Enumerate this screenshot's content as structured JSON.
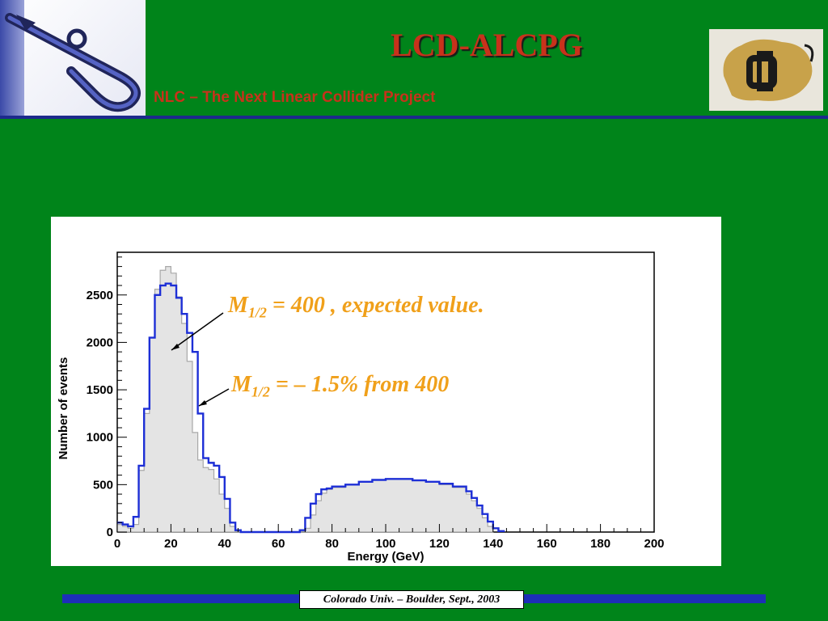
{
  "header": {
    "title": "LCD-ALCPG",
    "subtitle": "NLC – The Next Linear Collider Project"
  },
  "annotations": {
    "expected_main": "M",
    "expected_sub": "1/2",
    "expected_rest": " = 400 , expected value.",
    "shifted_main": "M",
    "shifted_sub": "1/2",
    "shifted_rest": " =  – 1.5% from 400"
  },
  "footer": {
    "text": "Colorado Univ. – Boulder, Sept., 2003"
  },
  "colors": {
    "background": "#00841a",
    "title": "#c8321b",
    "annotation": "#f0a01a",
    "accent_blue": "#1d2fb8",
    "rule": "#1d2a8c"
  },
  "icons": {
    "left_logo": "nlc-accelerator-logo",
    "right_logo": "cu-buffalo-logo"
  },
  "chart_data": {
    "type": "area",
    "xlabel": "Energy (GeV)",
    "ylabel": "Number of events",
    "xlim": [
      0,
      200
    ],
    "ylim": [
      0,
      2950
    ],
    "xticks": [
      0,
      20,
      40,
      60,
      80,
      100,
      120,
      140,
      160,
      180,
      200
    ],
    "yticks": [
      0,
      500,
      1000,
      1500,
      2000,
      2500
    ],
    "series": [
      {
        "style": "gray filled histogram",
        "color": "#a8a8a8",
        "x": [
          0,
          2,
          4,
          6,
          8,
          10,
          12,
          14,
          16,
          18,
          20,
          22,
          24,
          26,
          28,
          30,
          32,
          34,
          36,
          38,
          40,
          42,
          44,
          46,
          68,
          70,
          72,
          74,
          76,
          78,
          80,
          85,
          90,
          95,
          100,
          105,
          110,
          115,
          120,
          125,
          130,
          132,
          134,
          136,
          138,
          140
        ],
        "y": [
          80,
          60,
          40,
          80,
          650,
          1250,
          2050,
          2560,
          2760,
          2800,
          2730,
          2480,
          2200,
          1800,
          1050,
          760,
          680,
          660,
          560,
          400,
          250,
          60,
          10,
          0,
          0,
          40,
          180,
          330,
          410,
          450,
          470,
          500,
          530,
          550,
          560,
          560,
          545,
          530,
          500,
          470,
          400,
          330,
          250,
          150,
          60,
          0
        ]
      },
      {
        "style": "blue step outline",
        "color": "#1d2fd6",
        "x": [
          0,
          2,
          4,
          6,
          8,
          10,
          12,
          14,
          16,
          18,
          20,
          22,
          24,
          26,
          28,
          30,
          32,
          34,
          36,
          38,
          40,
          42,
          44,
          46,
          66,
          68,
          70,
          72,
          74,
          76,
          78,
          80,
          85,
          90,
          95,
          100,
          105,
          110,
          115,
          120,
          125,
          130,
          132,
          134,
          136,
          138,
          140,
          142,
          144
        ],
        "y": [
          100,
          80,
          60,
          160,
          700,
          1300,
          2050,
          2500,
          2600,
          2620,
          2600,
          2470,
          2300,
          2100,
          1900,
          1250,
          780,
          730,
          700,
          580,
          350,
          100,
          20,
          0,
          0,
          20,
          150,
          300,
          400,
          450,
          460,
          480,
          500,
          530,
          550,
          560,
          560,
          545,
          530,
          510,
          480,
          430,
          360,
          280,
          190,
          110,
          40,
          10,
          0
        ]
      }
    ]
  }
}
